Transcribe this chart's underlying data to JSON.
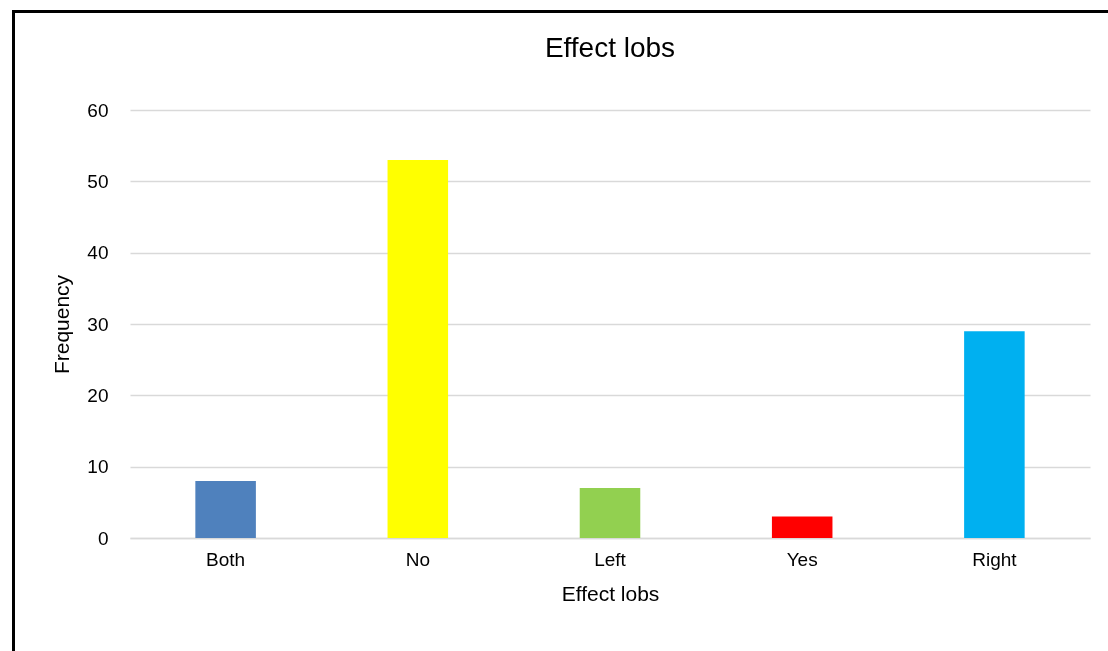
{
  "chart_data": {
    "type": "bar",
    "title": "Effect lobs",
    "xlabel": "Effect lobs",
    "ylabel": "Frequency",
    "categories": [
      "Both",
      "No",
      "Left",
      "Yes",
      "Right"
    ],
    "values": [
      8,
      53,
      7,
      3,
      29
    ],
    "colors": [
      "#4f81bd",
      "#ffff00",
      "#92d050",
      "#ff0000",
      "#00b0f0"
    ],
    "ylim": [
      0,
      60
    ],
    "yticks": [
      0,
      10,
      20,
      30,
      40,
      50,
      60
    ],
    "grid": true
  }
}
